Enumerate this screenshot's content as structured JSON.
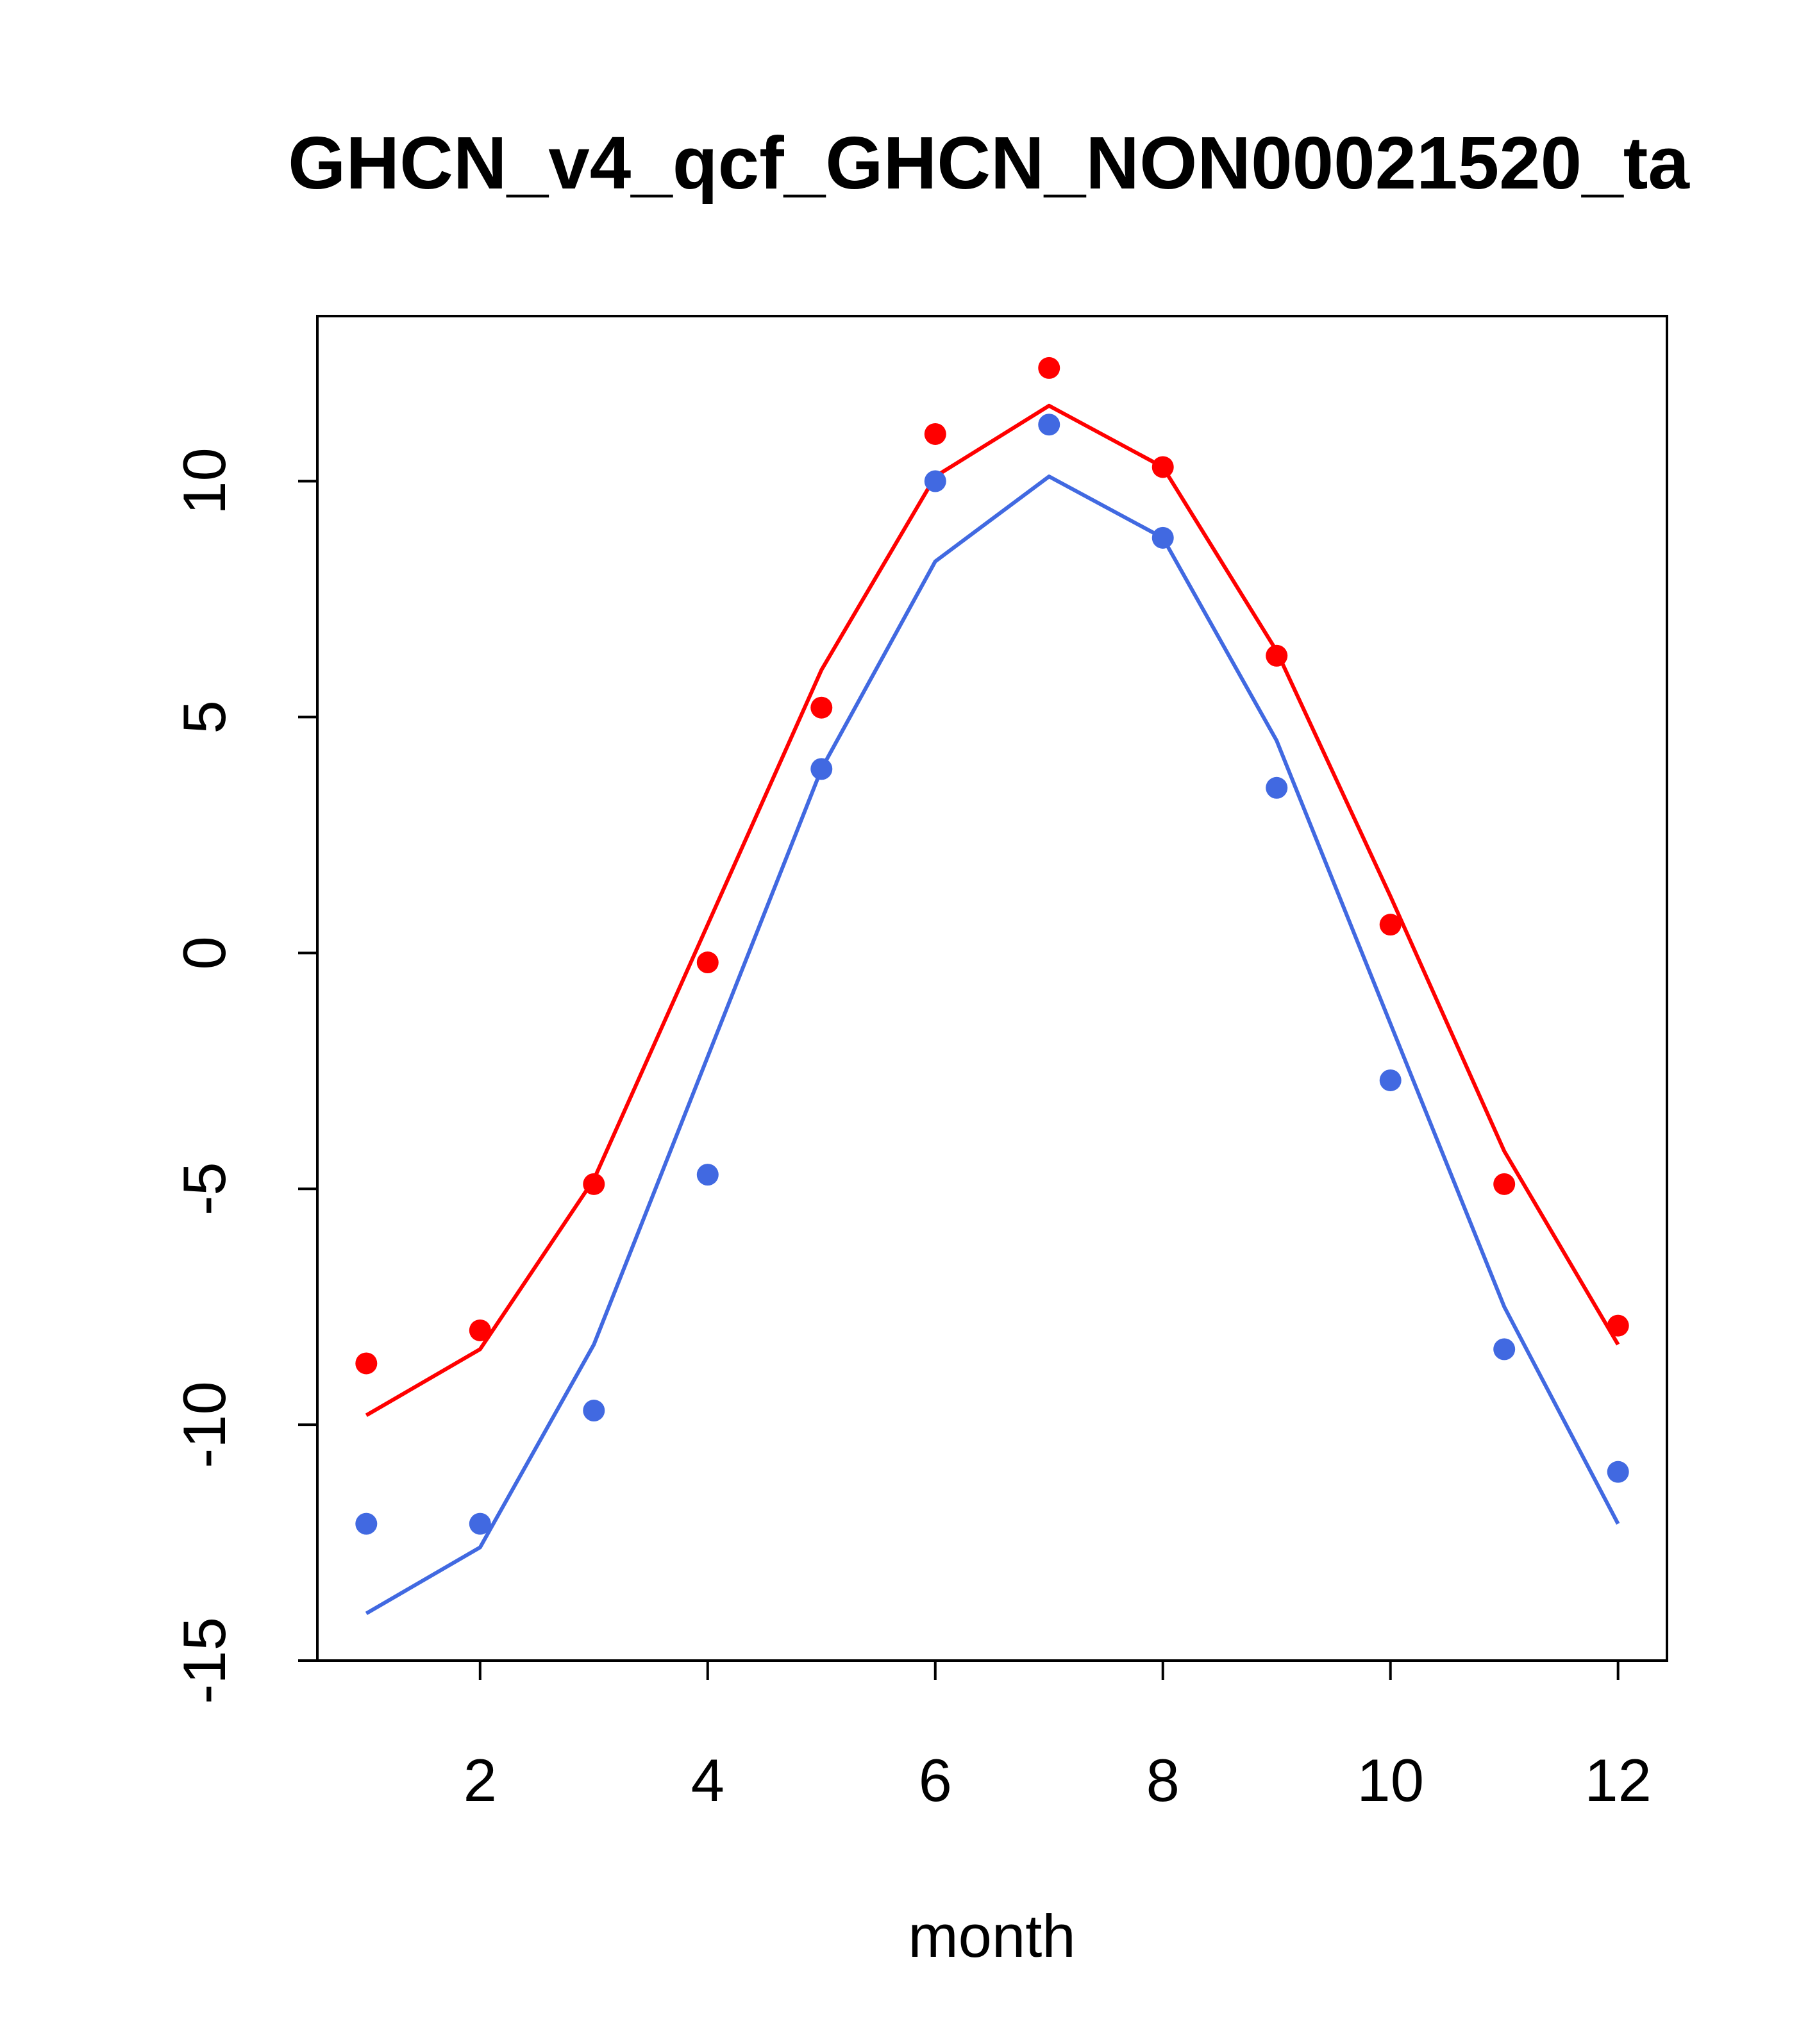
{
  "chart_data": {
    "type": "line",
    "title": "GHCN_v4_qcf_GHCN_NON00021520_ta",
    "xlabel": "month",
    "ylabel": "",
    "xlim": [
      0.57,
      12.43
    ],
    "ylim": [
      -15,
      13.5
    ],
    "xticks": [
      2,
      4,
      6,
      8,
      10,
      12
    ],
    "yticks": [
      -15,
      -10,
      -5,
      0,
      5,
      10
    ],
    "grid": false,
    "x": [
      1,
      2,
      3,
      4,
      5,
      6,
      7,
      8,
      9,
      10,
      11,
      12
    ],
    "series": [
      {
        "style": "line",
        "color": "#ff0000",
        "values": [
          -9.8,
          -8.4,
          -4.8,
          0.6,
          6.0,
          10.1,
          11.6,
          10.3,
          6.4,
          1.2,
          -4.2,
          -8.3
        ]
      },
      {
        "style": "points",
        "color": "#ff0000",
        "values": [
          -8.7,
          -8.0,
          -4.9,
          -0.2,
          5.2,
          11.0,
          12.4,
          10.3,
          6.3,
          0.6,
          -4.9,
          -7.9
        ]
      },
      {
        "style": "line",
        "color": "#4169e1",
        "values": [
          -14.0,
          -12.6,
          -8.3,
          -2.2,
          3.9,
          8.3,
          10.1,
          8.8,
          4.5,
          -1.5,
          -7.5,
          -12.1
        ]
      },
      {
        "style": "points",
        "color": "#4169e1",
        "values": [
          -12.1,
          -12.1,
          -9.7,
          -4.7,
          3.9,
          10.0,
          11.2,
          8.8,
          3.5,
          -2.7,
          -8.4,
          -11.0
        ]
      }
    ]
  }
}
